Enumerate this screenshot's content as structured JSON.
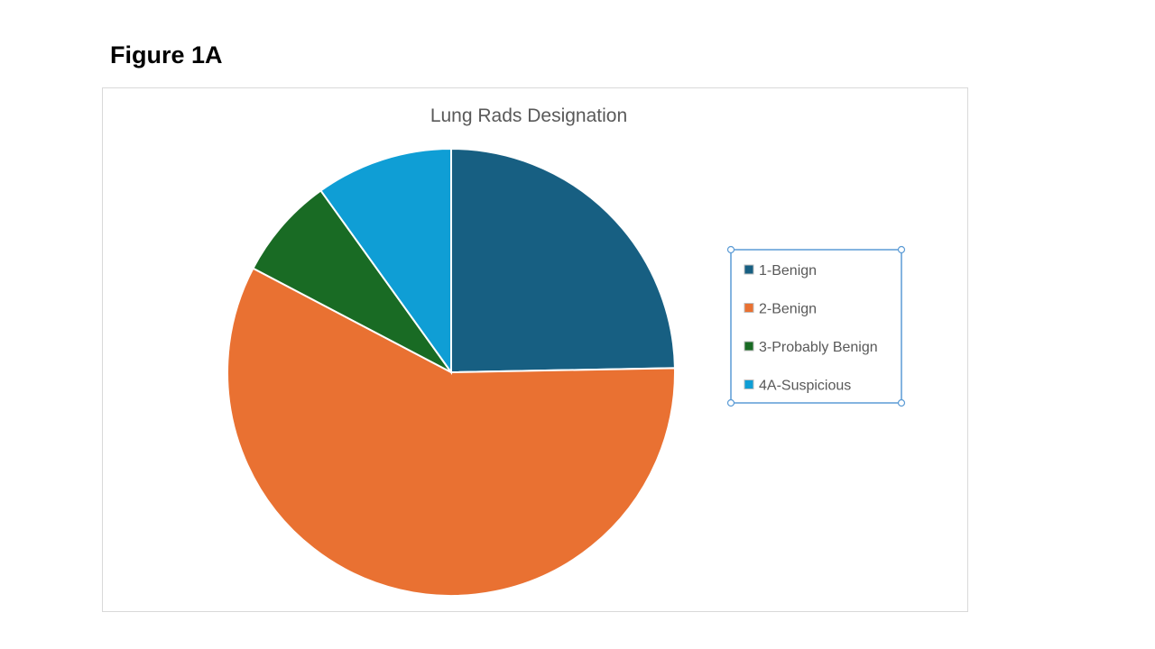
{
  "figure_label": "Figure 1A",
  "chart_data": {
    "type": "pie",
    "title": "Lung Rads Designation",
    "categories": [
      "1-Benign",
      "2-Benign",
      "3-Probably Benign",
      "4A-Suspicious"
    ],
    "values": [
      24.7,
      58.0,
      7.4,
      9.9
    ],
    "colors": [
      "#175f82",
      "#e97132",
      "#196b24",
      "#0f9ed5"
    ],
    "start_angle_deg": 0,
    "direction": "clockwise",
    "legend_position": "right",
    "legend_selected": true
  }
}
